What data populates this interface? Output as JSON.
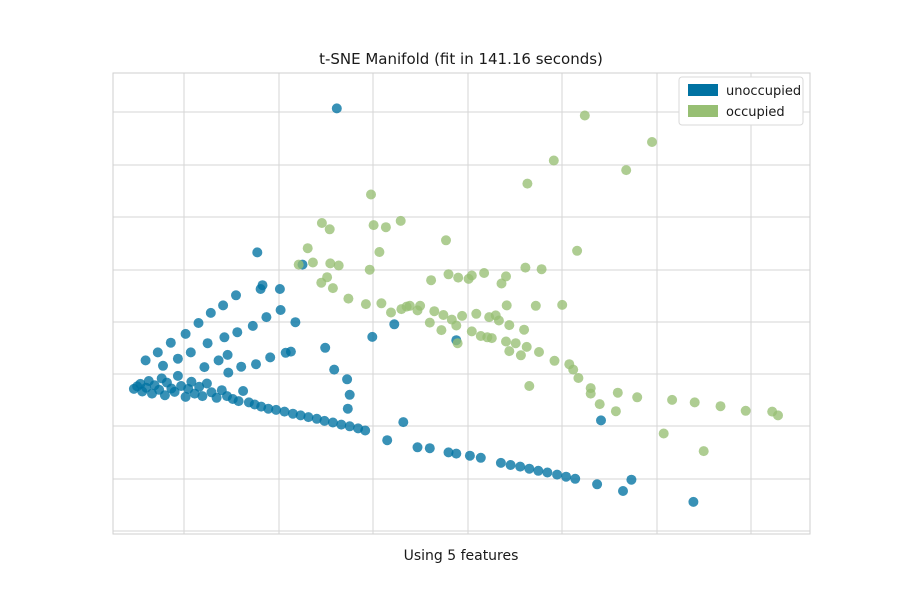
{
  "chart_data": {
    "type": "scatter",
    "title": "t-SNE Manifold (fit in 141.16 seconds)",
    "xlabel": "Using 5 features",
    "ylabel": "",
    "xlim": [
      0,
      100
    ],
    "ylim": [
      0,
      100
    ],
    "grid": true,
    "legend_position": "top-right",
    "series": [
      {
        "name": "unoccupied",
        "color": "#0072a2",
        "points": [
          [
            31.7,
            96.1
          ],
          [
            0.3,
            29.3
          ],
          [
            0.8,
            29.9
          ],
          [
            1.3,
            30.5
          ],
          [
            1.6,
            28.7
          ],
          [
            2.2,
            29.6
          ],
          [
            2.6,
            31.2
          ],
          [
            3.1,
            28.2
          ],
          [
            3.5,
            30.2
          ],
          [
            4.2,
            29.1
          ],
          [
            4.6,
            31.8
          ],
          [
            5.1,
            27.8
          ],
          [
            5.4,
            30.8
          ],
          [
            6.1,
            29.4
          ],
          [
            6.6,
            28.6
          ],
          [
            7.1,
            32.4
          ],
          [
            7.6,
            30.0
          ],
          [
            8.3,
            27.4
          ],
          [
            8.7,
            29.3
          ],
          [
            9.2,
            31.0
          ],
          [
            9.7,
            28.2
          ],
          [
            10.4,
            29.8
          ],
          [
            10.9,
            27.6
          ],
          [
            11.6,
            30.6
          ],
          [
            12.3,
            28.5
          ],
          [
            13.1,
            27.2
          ],
          [
            13.9,
            29.0
          ],
          [
            14.7,
            27.6
          ],
          [
            15.6,
            26.9
          ],
          [
            16.5,
            26.4
          ],
          [
            17.2,
            28.8
          ],
          [
            18.1,
            26.1
          ],
          [
            19.0,
            25.6
          ],
          [
            20.0,
            25.1
          ],
          [
            21.1,
            24.6
          ],
          [
            22.3,
            24.3
          ],
          [
            23.6,
            23.9
          ],
          [
            24.9,
            23.4
          ],
          [
            26.1,
            23.0
          ],
          [
            27.3,
            22.6
          ],
          [
            28.6,
            22.2
          ],
          [
            29.8,
            21.7
          ],
          [
            31.1,
            21.3
          ],
          [
            32.4,
            20.8
          ],
          [
            33.7,
            20.4
          ],
          [
            35.0,
            19.9
          ],
          [
            36.1,
            19.4
          ],
          [
            39.5,
            17.1
          ],
          [
            44.2,
            15.4
          ],
          [
            46.1,
            15.2
          ],
          [
            49.0,
            14.2
          ],
          [
            50.2,
            13.9
          ],
          [
            52.3,
            13.4
          ],
          [
            54.0,
            12.9
          ],
          [
            57.1,
            11.7
          ],
          [
            58.6,
            11.2
          ],
          [
            60.1,
            10.8
          ],
          [
            61.5,
            10.3
          ],
          [
            62.9,
            9.8
          ],
          [
            64.3,
            9.4
          ],
          [
            65.8,
            8.9
          ],
          [
            67.2,
            8.4
          ],
          [
            68.6,
            7.9
          ],
          [
            72.0,
            6.6
          ],
          [
            76.0,
            5.0
          ],
          [
            86.9,
            2.4
          ],
          [
            2.1,
            36.1
          ],
          [
            4.0,
            38.0
          ],
          [
            6.0,
            40.3
          ],
          [
            8.3,
            42.4
          ],
          [
            10.3,
            45.0
          ],
          [
            12.2,
            47.4
          ],
          [
            14.1,
            49.2
          ],
          [
            16.1,
            51.6
          ],
          [
            20.2,
            54.0
          ],
          [
            4.8,
            34.8
          ],
          [
            7.1,
            36.5
          ],
          [
            9.1,
            38.0
          ],
          [
            11.7,
            40.2
          ],
          [
            14.3,
            41.6
          ],
          [
            16.3,
            42.8
          ],
          [
            18.7,
            44.3
          ],
          [
            20.8,
            46.4
          ],
          [
            23.0,
            48.1
          ],
          [
            14.9,
            33.2
          ],
          [
            24.6,
            38.2
          ],
          [
            11.2,
            34.5
          ],
          [
            13.4,
            36.1
          ],
          [
            14.8,
            37.4
          ],
          [
            16.9,
            34.6
          ],
          [
            19.2,
            35.2
          ],
          [
            21.4,
            36.8
          ],
          [
            23.8,
            37.9
          ],
          [
            31.3,
            33.9
          ],
          [
            33.3,
            31.6
          ],
          [
            26.4,
            58.9
          ],
          [
            19.9,
            53.1
          ],
          [
            19.4,
            61.8
          ],
          [
            22.9,
            53.1
          ],
          [
            25.3,
            45.2
          ],
          [
            29.9,
            39.1
          ],
          [
            37.2,
            41.7
          ],
          [
            40.6,
            44.7
          ],
          [
            50.2,
            40.9
          ],
          [
            33.7,
            27.9
          ],
          [
            33.4,
            24.6
          ],
          [
            42.0,
            21.4
          ],
          [
            72.6,
            21.8
          ],
          [
            77.3,
            7.7
          ]
        ]
      },
      {
        "name": "occupied",
        "color": "#97bf73",
        "points": [
          [
            70.1,
            94.4
          ],
          [
            80.5,
            88.1
          ],
          [
            65.3,
            83.7
          ],
          [
            76.5,
            81.4
          ],
          [
            61.2,
            78.2
          ],
          [
            37.0,
            75.6
          ],
          [
            29.4,
            68.8
          ],
          [
            37.4,
            68.3
          ],
          [
            39.3,
            67.8
          ],
          [
            41.6,
            69.3
          ],
          [
            30.6,
            67.3
          ],
          [
            48.6,
            64.7
          ],
          [
            68.9,
            62.2
          ],
          [
            27.2,
            62.8
          ],
          [
            38.3,
            61.9
          ],
          [
            60.9,
            58.2
          ],
          [
            63.4,
            57.8
          ],
          [
            54.5,
            56.9
          ],
          [
            49.0,
            56.6
          ],
          [
            52.6,
            56.3
          ],
          [
            57.2,
            54.4
          ],
          [
            46.3,
            55.2
          ],
          [
            52.1,
            55.5
          ],
          [
            57.9,
            56.1
          ],
          [
            25.8,
            58.9
          ],
          [
            28.0,
            59.4
          ],
          [
            30.2,
            55.9
          ],
          [
            29.3,
            54.6
          ],
          [
            31.1,
            53.3
          ],
          [
            33.5,
            50.8
          ],
          [
            36.2,
            49.5
          ],
          [
            38.6,
            49.7
          ],
          [
            40.1,
            47.5
          ],
          [
            41.7,
            48.3
          ],
          [
            43.0,
            49.1
          ],
          [
            44.6,
            49.1
          ],
          [
            46.8,
            47.8
          ],
          [
            46.1,
            45.1
          ],
          [
            47.9,
            43.3
          ],
          [
            50.2,
            44.4
          ],
          [
            52.6,
            43.0
          ],
          [
            54.0,
            41.9
          ],
          [
            55.7,
            41.4
          ],
          [
            57.9,
            40.6
          ],
          [
            59.4,
            40.2
          ],
          [
            61.1,
            39.3
          ],
          [
            63.0,
            38.1
          ],
          [
            65.4,
            36.0
          ],
          [
            68.3,
            33.9
          ],
          [
            71.0,
            29.5
          ],
          [
            75.2,
            28.4
          ],
          [
            78.2,
            27.3
          ],
          [
            83.6,
            26.7
          ],
          [
            87.1,
            26.1
          ],
          [
            91.1,
            25.2
          ],
          [
            95.0,
            24.1
          ],
          [
            99.1,
            23.9
          ],
          [
            100.0,
            23.0
          ],
          [
            58.0,
            49.2
          ],
          [
            62.5,
            49.1
          ],
          [
            66.6,
            49.3
          ],
          [
            48.2,
            46.9
          ],
          [
            53.3,
            47.2
          ],
          [
            55.3,
            46.4
          ],
          [
            56.8,
            45.6
          ],
          [
            58.4,
            44.5
          ],
          [
            60.7,
            43.4
          ],
          [
            49.5,
            45.8
          ],
          [
            51.1,
            46.7
          ],
          [
            44.2,
            48.0
          ],
          [
            42.5,
            48.9
          ],
          [
            55.0,
            41.6
          ],
          [
            60.2,
            37.3
          ],
          [
            67.7,
            35.2
          ],
          [
            69.1,
            31.9
          ],
          [
            71.0,
            28.2
          ],
          [
            72.4,
            25.7
          ],
          [
            74.9,
            24.0
          ],
          [
            82.3,
            18.7
          ],
          [
            88.5,
            14.5
          ],
          [
            30.7,
            59.2
          ],
          [
            32.0,
            58.7
          ],
          [
            36.8,
            57.7
          ],
          [
            50.5,
            55.8
          ],
          [
            56.3,
            46.8
          ],
          [
            50.4,
            40.2
          ],
          [
            58.4,
            38.3
          ],
          [
            61.5,
            30.0
          ]
        ]
      }
    ]
  }
}
